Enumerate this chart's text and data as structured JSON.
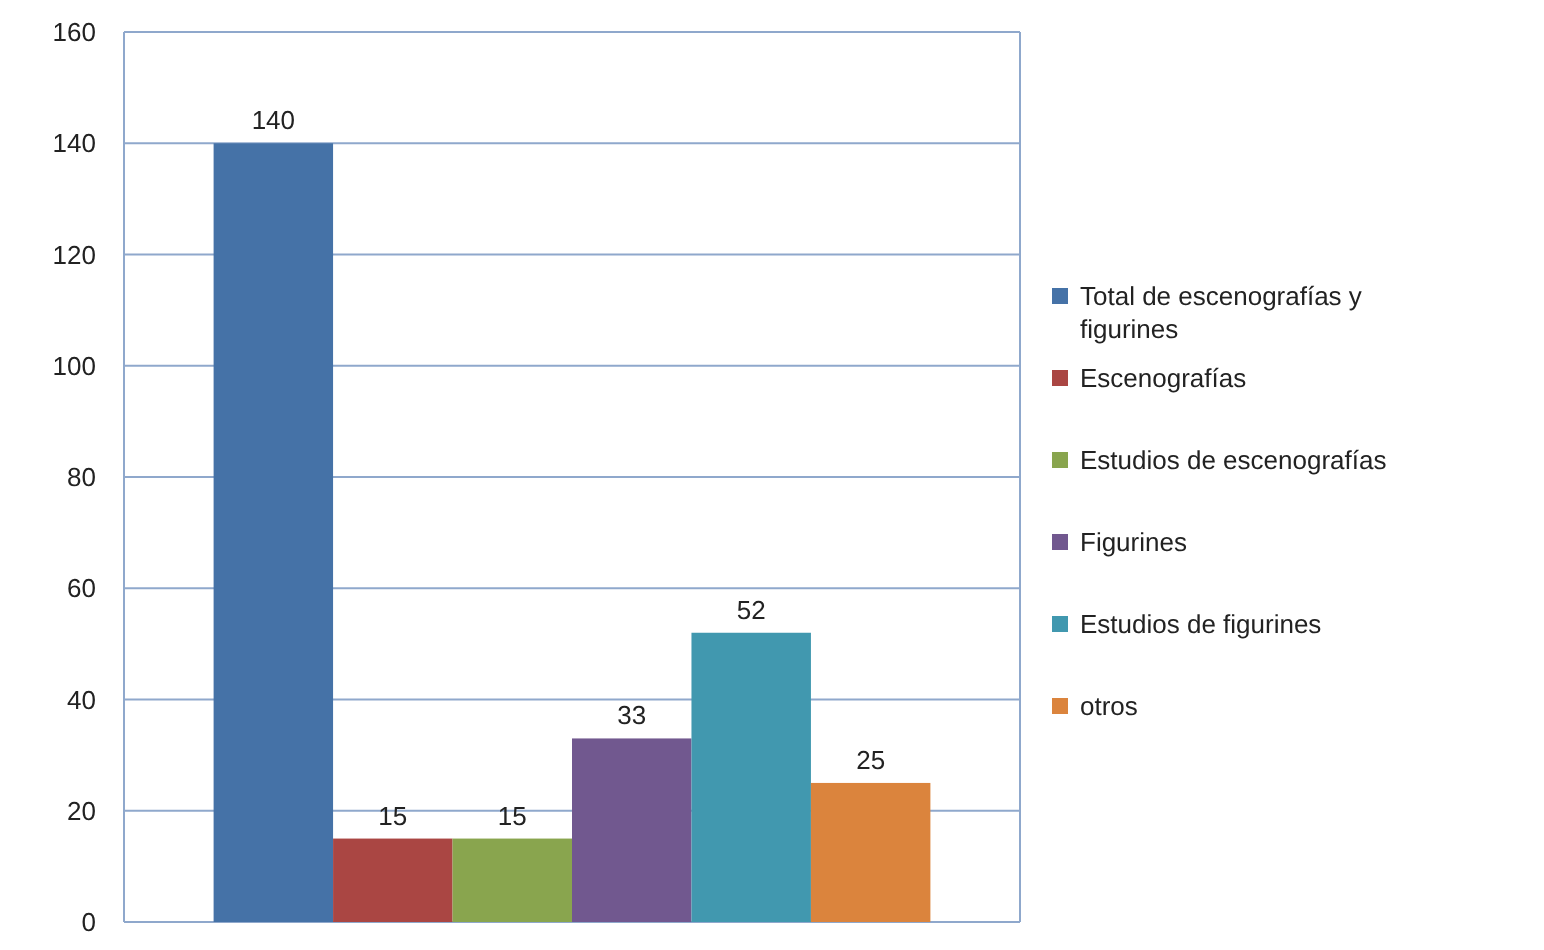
{
  "chart_data": {
    "type": "bar",
    "categories": [
      null
    ],
    "series": [
      {
        "name": "Total de escenografías y figurines",
        "color": "#4572a7",
        "values": [
          140
        ]
      },
      {
        "name": "Escenografías",
        "color": "#aa4643",
        "values": [
          15
        ]
      },
      {
        "name": "Estudios de escenografías",
        "color": "#89a54e",
        "values": [
          15
        ]
      },
      {
        "name": "Figurines",
        "color": "#71588f",
        "values": [
          33
        ]
      },
      {
        "name": "Estudios de figurines",
        "color": "#4198af",
        "values": [
          52
        ]
      },
      {
        "name": "otros",
        "color": "#db843d",
        "values": [
          25
        ]
      }
    ],
    "data_labels": true,
    "ylim": [
      0,
      160
    ],
    "yticks": [
      0,
      20,
      40,
      60,
      80,
      100,
      120,
      140,
      160
    ],
    "grid": "y",
    "legend": "right"
  }
}
